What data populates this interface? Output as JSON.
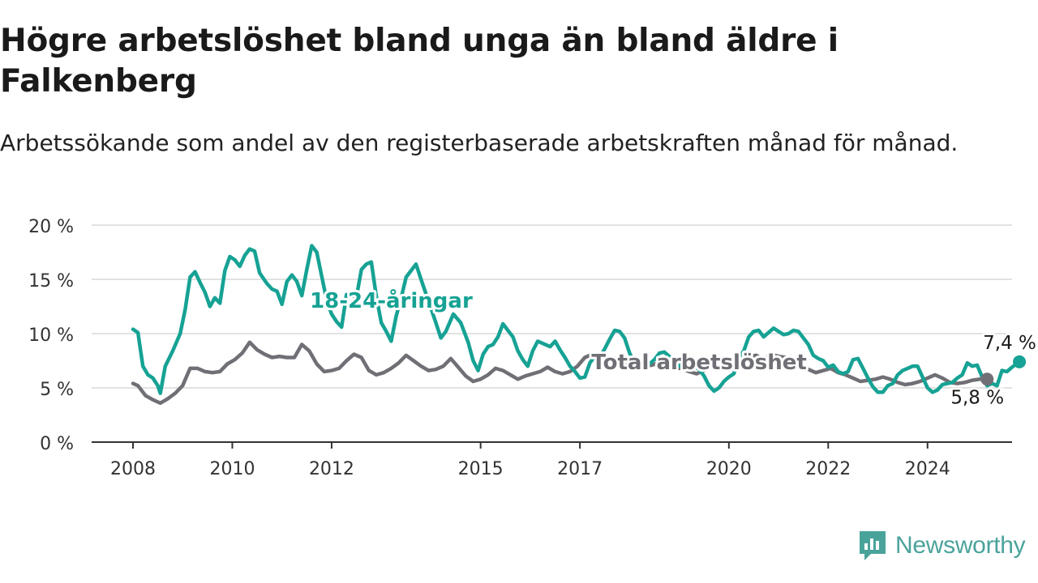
{
  "title": "Högre arbetslöshet bland unga än bland äldre i Falkenberg",
  "subtitle": "Arbetssökande som andel av den registerbaserade arbetskraften månad för månad.",
  "brand": {
    "name": "Newsworthy",
    "color": "#4aa39b"
  },
  "chart_data": {
    "type": "line",
    "xlim": [
      2008.0,
      2026.25
    ],
    "ylim": [
      0,
      20
    ],
    "x_ticks": [
      {
        "x": 2008,
        "label": "2008"
      },
      {
        "x": 2010,
        "label": "2010"
      },
      {
        "x": 2012,
        "label": "2012"
      },
      {
        "x": 2015,
        "label": "2015"
      },
      {
        "x": 2017,
        "label": "2017"
      },
      {
        "x": 2020,
        "label": "2020"
      },
      {
        "x": 2022,
        "label": "2022"
      },
      {
        "x": 2024,
        "label": "2024"
      }
    ],
    "y_ticks": [
      {
        "y": 0,
        "label": "0 %"
      },
      {
        "y": 5,
        "label": "5 %"
      },
      {
        "y": 10,
        "label": "10 %"
      },
      {
        "y": 15,
        "label": "15 %"
      },
      {
        "y": 20,
        "label": "20 %"
      }
    ],
    "grid": true,
    "series": [
      {
        "name": "Total arbetslöshet",
        "color": "#716f76",
        "end_label": "5,8 %",
        "points": [
          [
            2008.0,
            5.4
          ],
          [
            2008.1,
            5.2
          ],
          [
            2008.25,
            4.3
          ],
          [
            2008.4,
            3.9
          ],
          [
            2008.55,
            3.6
          ],
          [
            2008.7,
            4.0
          ],
          [
            2008.85,
            4.5
          ],
          [
            2009.0,
            5.2
          ],
          [
            2009.15,
            6.8
          ],
          [
            2009.3,
            6.8
          ],
          [
            2009.45,
            6.5
          ],
          [
            2009.6,
            6.4
          ],
          [
            2009.75,
            6.5
          ],
          [
            2009.9,
            7.2
          ],
          [
            2010.05,
            7.6
          ],
          [
            2010.2,
            8.2
          ],
          [
            2010.35,
            9.2
          ],
          [
            2010.5,
            8.5
          ],
          [
            2010.65,
            8.1
          ],
          [
            2010.8,
            7.8
          ],
          [
            2010.95,
            7.9
          ],
          [
            2011.1,
            7.8
          ],
          [
            2011.25,
            7.8
          ],
          [
            2011.4,
            9.0
          ],
          [
            2011.55,
            8.4
          ],
          [
            2011.7,
            7.2
          ],
          [
            2011.85,
            6.5
          ],
          [
            2012.0,
            6.6
          ],
          [
            2012.15,
            6.8
          ],
          [
            2012.3,
            7.5
          ],
          [
            2012.45,
            8.1
          ],
          [
            2012.6,
            7.8
          ],
          [
            2012.75,
            6.6
          ],
          [
            2012.9,
            6.2
          ],
          [
            2013.05,
            6.4
          ],
          [
            2013.2,
            6.8
          ],
          [
            2013.35,
            7.3
          ],
          [
            2013.5,
            8.0
          ],
          [
            2013.65,
            7.5
          ],
          [
            2013.8,
            7.0
          ],
          [
            2013.95,
            6.6
          ],
          [
            2014.1,
            6.7
          ],
          [
            2014.25,
            7.0
          ],
          [
            2014.4,
            7.7
          ],
          [
            2014.55,
            6.9
          ],
          [
            2014.7,
            6.1
          ],
          [
            2014.85,
            5.6
          ],
          [
            2015.0,
            5.8
          ],
          [
            2015.15,
            6.2
          ],
          [
            2015.3,
            6.8
          ],
          [
            2015.45,
            6.6
          ],
          [
            2015.6,
            6.2
          ],
          [
            2015.75,
            5.8
          ],
          [
            2015.9,
            6.1
          ],
          [
            2016.05,
            6.3
          ],
          [
            2016.2,
            6.5
          ],
          [
            2016.35,
            6.9
          ],
          [
            2016.5,
            6.5
          ],
          [
            2016.65,
            6.3
          ],
          [
            2016.8,
            6.5
          ],
          [
            2016.95,
            7.0
          ],
          [
            2017.1,
            7.8
          ],
          [
            2017.25,
            8.1
          ],
          [
            2017.4,
            7.6
          ],
          [
            2017.55,
            7.3
          ],
          [
            2017.7,
            7.1
          ],
          [
            2017.85,
            7.2
          ],
          [
            2018.0,
            7.6
          ],
          [
            2018.15,
            7.4
          ],
          [
            2018.3,
            7.0
          ],
          [
            2018.45,
            7.1
          ],
          [
            2018.6,
            7.3
          ],
          [
            2018.75,
            7.0
          ],
          [
            2018.9,
            6.8
          ],
          [
            2019.05,
            6.8
          ],
          [
            2019.2,
            6.5
          ],
          [
            2019.35,
            6.3
          ],
          [
            2019.5,
            6.6
          ],
          [
            2019.65,
            6.9
          ],
          [
            2019.8,
            6.7
          ],
          [
            2019.95,
            6.8
          ],
          [
            2020.1,
            7.2
          ],
          [
            2020.25,
            7.6
          ],
          [
            2020.4,
            7.9
          ],
          [
            2020.55,
            8.0
          ],
          [
            2020.7,
            7.6
          ],
          [
            2020.85,
            8.1
          ],
          [
            2021.0,
            7.9
          ],
          [
            2021.15,
            7.8
          ],
          [
            2021.3,
            7.5
          ],
          [
            2021.45,
            7.0
          ],
          [
            2021.6,
            6.7
          ],
          [
            2021.75,
            6.4
          ],
          [
            2021.9,
            6.6
          ],
          [
            2022.05,
            6.8
          ],
          [
            2022.2,
            6.4
          ],
          [
            2022.35,
            6.2
          ],
          [
            2022.5,
            5.9
          ],
          [
            2022.65,
            5.6
          ],
          [
            2022.8,
            5.7
          ],
          [
            2022.95,
            5.8
          ],
          [
            2023.1,
            6.0
          ],
          [
            2023.25,
            5.8
          ],
          [
            2023.4,
            5.5
          ],
          [
            2023.55,
            5.3
          ],
          [
            2023.7,
            5.4
          ],
          [
            2023.85,
            5.6
          ],
          [
            2024.0,
            5.9
          ],
          [
            2024.15,
            6.2
          ],
          [
            2024.3,
            5.9
          ],
          [
            2024.45,
            5.5
          ],
          [
            2024.6,
            5.4
          ],
          [
            2024.75,
            5.5
          ],
          [
            2024.9,
            5.7
          ],
          [
            2025.05,
            5.8
          ],
          [
            2025.2,
            5.8
          ]
        ]
      },
      {
        "name": "18-24-åringar",
        "color": "#16a294",
        "end_label": "7,4 %",
        "points": [
          [
            2008.0,
            10.4
          ],
          [
            2008.1,
            10.1
          ],
          [
            2008.2,
            7.0
          ],
          [
            2008.3,
            6.2
          ],
          [
            2008.4,
            5.9
          ],
          [
            2008.5,
            5.2
          ],
          [
            2008.55,
            4.5
          ],
          [
            2008.65,
            7.0
          ],
          [
            2008.8,
            8.4
          ],
          [
            2008.95,
            10.0
          ],
          [
            2009.05,
            12.2
          ],
          [
            2009.15,
            15.2
          ],
          [
            2009.25,
            15.7
          ],
          [
            2009.35,
            14.7
          ],
          [
            2009.45,
            13.8
          ],
          [
            2009.55,
            12.5
          ],
          [
            2009.65,
            13.3
          ],
          [
            2009.75,
            12.8
          ],
          [
            2009.85,
            15.8
          ],
          [
            2009.95,
            17.1
          ],
          [
            2010.05,
            16.8
          ],
          [
            2010.15,
            16.2
          ],
          [
            2010.25,
            17.2
          ],
          [
            2010.35,
            17.8
          ],
          [
            2010.45,
            17.6
          ],
          [
            2010.55,
            15.6
          ],
          [
            2010.7,
            14.6
          ],
          [
            2010.8,
            14.1
          ],
          [
            2010.9,
            13.9
          ],
          [
            2011.0,
            12.7
          ],
          [
            2011.1,
            14.8
          ],
          [
            2011.2,
            15.4
          ],
          [
            2011.3,
            14.8
          ],
          [
            2011.4,
            13.5
          ],
          [
            2011.5,
            15.9
          ],
          [
            2011.6,
            18.1
          ],
          [
            2011.7,
            17.5
          ],
          [
            2011.8,
            15.3
          ],
          [
            2011.9,
            13.1
          ],
          [
            2012.0,
            11.8
          ],
          [
            2012.1,
            11.1
          ],
          [
            2012.2,
            10.6
          ],
          [
            2012.3,
            13.6
          ],
          [
            2012.4,
            13.5
          ],
          [
            2012.5,
            13.4
          ],
          [
            2012.6,
            15.9
          ],
          [
            2012.7,
            16.4
          ],
          [
            2012.8,
            16.6
          ],
          [
            2012.9,
            13.4
          ],
          [
            2013.0,
            11.0
          ],
          [
            2013.1,
            10.2
          ],
          [
            2013.2,
            9.3
          ],
          [
            2013.3,
            11.6
          ],
          [
            2013.4,
            13.3
          ],
          [
            2013.5,
            15.2
          ],
          [
            2013.6,
            15.8
          ],
          [
            2013.7,
            16.4
          ],
          [
            2013.8,
            15.0
          ],
          [
            2013.95,
            13.0
          ],
          [
            2014.1,
            11.0
          ],
          [
            2014.2,
            9.6
          ],
          [
            2014.3,
            10.2
          ],
          [
            2014.45,
            11.8
          ],
          [
            2014.6,
            11.0
          ],
          [
            2014.75,
            9.2
          ],
          [
            2014.85,
            7.5
          ],
          [
            2014.95,
            6.6
          ],
          [
            2015.05,
            8.1
          ],
          [
            2015.15,
            8.8
          ],
          [
            2015.25,
            9.0
          ],
          [
            2015.35,
            9.7
          ],
          [
            2015.45,
            10.9
          ],
          [
            2015.55,
            10.3
          ],
          [
            2015.65,
            9.7
          ],
          [
            2015.75,
            8.4
          ],
          [
            2015.85,
            7.6
          ],
          [
            2015.95,
            7.0
          ],
          [
            2016.05,
            8.4
          ],
          [
            2016.15,
            9.3
          ],
          [
            2016.3,
            9.0
          ],
          [
            2016.4,
            8.8
          ],
          [
            2016.5,
            9.3
          ],
          [
            2016.6,
            8.5
          ],
          [
            2016.7,
            7.8
          ],
          [
            2016.8,
            7.0
          ],
          [
            2016.9,
            6.5
          ],
          [
            2017.0,
            5.9
          ],
          [
            2017.1,
            6.0
          ],
          [
            2017.2,
            7.3
          ],
          [
            2017.3,
            7.9
          ],
          [
            2017.4,
            7.8
          ],
          [
            2017.5,
            8.6
          ],
          [
            2017.6,
            9.5
          ],
          [
            2017.7,
            10.3
          ],
          [
            2017.8,
            10.2
          ],
          [
            2017.9,
            9.6
          ],
          [
            2018.0,
            8.2
          ],
          [
            2018.1,
            7.3
          ],
          [
            2018.2,
            6.9
          ],
          [
            2018.3,
            7.0
          ],
          [
            2018.4,
            7.2
          ],
          [
            2018.5,
            7.6
          ],
          [
            2018.6,
            8.2
          ],
          [
            2018.7,
            8.3
          ],
          [
            2018.8,
            7.9
          ],
          [
            2018.9,
            7.3
          ],
          [
            2019.0,
            7.0
          ],
          [
            2019.1,
            7.4
          ],
          [
            2019.2,
            7.3
          ],
          [
            2019.3,
            7.0
          ],
          [
            2019.4,
            6.7
          ],
          [
            2019.5,
            6.1
          ],
          [
            2019.6,
            5.2
          ],
          [
            2019.7,
            4.7
          ],
          [
            2019.8,
            5.0
          ],
          [
            2019.9,
            5.6
          ],
          [
            2020.0,
            6.0
          ],
          [
            2020.1,
            6.3
          ],
          [
            2020.2,
            7.8
          ],
          [
            2020.3,
            8.4
          ],
          [
            2020.4,
            9.7
          ],
          [
            2020.5,
            10.2
          ],
          [
            2020.6,
            10.3
          ],
          [
            2020.7,
            9.7
          ],
          [
            2020.8,
            10.1
          ],
          [
            2020.9,
            10.5
          ],
          [
            2021.0,
            10.2
          ],
          [
            2021.1,
            9.9
          ],
          [
            2021.2,
            10.0
          ],
          [
            2021.3,
            10.3
          ],
          [
            2021.4,
            10.2
          ],
          [
            2021.5,
            9.6
          ],
          [
            2021.6,
            9.0
          ],
          [
            2021.7,
            8.0
          ],
          [
            2021.8,
            7.7
          ],
          [
            2021.9,
            7.5
          ],
          [
            2022.0,
            6.9
          ],
          [
            2022.1,
            7.1
          ],
          [
            2022.2,
            6.5
          ],
          [
            2022.3,
            6.3
          ],
          [
            2022.4,
            6.5
          ],
          [
            2022.5,
            7.6
          ],
          [
            2022.6,
            7.7
          ],
          [
            2022.7,
            6.8
          ],
          [
            2022.8,
            5.9
          ],
          [
            2022.9,
            5.1
          ],
          [
            2023.0,
            4.6
          ],
          [
            2023.1,
            4.6
          ],
          [
            2023.2,
            5.2
          ],
          [
            2023.3,
            5.4
          ],
          [
            2023.4,
            6.2
          ],
          [
            2023.5,
            6.6
          ],
          [
            2023.6,
            6.8
          ],
          [
            2023.7,
            7.0
          ],
          [
            2023.8,
            7.0
          ],
          [
            2023.9,
            6.0
          ],
          [
            2024.0,
            5.0
          ],
          [
            2024.1,
            4.6
          ],
          [
            2024.2,
            4.8
          ],
          [
            2024.3,
            5.3
          ],
          [
            2024.4,
            5.4
          ],
          [
            2024.5,
            5.5
          ],
          [
            2024.6,
            5.9
          ],
          [
            2024.7,
            6.2
          ],
          [
            2024.8,
            7.3
          ],
          [
            2024.9,
            7.0
          ],
          [
            2025.0,
            7.1
          ],
          [
            2025.1,
            6.0
          ],
          [
            2025.2,
            5.2
          ],
          [
            2025.3,
            5.4
          ],
          [
            2025.4,
            5.2
          ],
          [
            2025.5,
            6.6
          ],
          [
            2025.6,
            6.5
          ],
          [
            2025.7,
            6.9
          ],
          [
            2025.85,
            7.4
          ]
        ]
      }
    ],
    "annotations": [
      {
        "text": "18-24-åringar",
        "x": 2013.2,
        "y": 12.4,
        "series": "18-24-åringar"
      },
      {
        "text": "Total arbetslöshet",
        "x": 2019.4,
        "y": 6.7,
        "series": "Total arbetslöshet"
      }
    ]
  }
}
